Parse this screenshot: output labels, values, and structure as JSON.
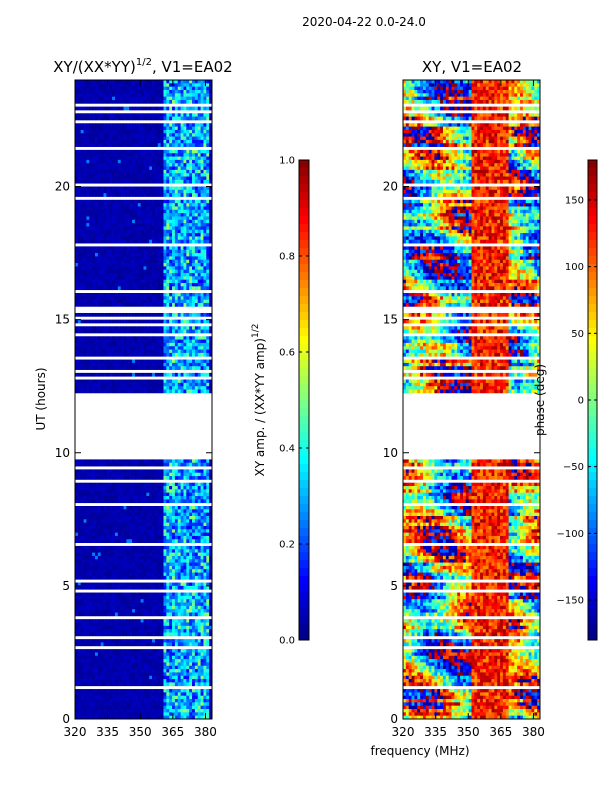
{
  "figure": {
    "suptitle": "2020-04-22 0.0-24.0"
  },
  "chart_data": [
    {
      "type": "heatmap",
      "title": "XY/(XX*YY)^1/2, V1=EA02",
      "title_main": "XY/(XX*YY)",
      "title_exp": "1/2",
      "title_rest": ", V1=EA02",
      "xlabel": "",
      "ylabel": "UT (hours)",
      "xlim": [
        320,
        383
      ],
      "ylim": [
        0,
        24
      ],
      "xticks": [
        320,
        335,
        350,
        365,
        380
      ],
      "yticks": [
        0,
        5,
        10,
        15,
        20
      ],
      "hot_band_mhz": [
        361,
        382
      ],
      "colorbar": {
        "label": "XY amp. / (XX*YY amp)^1/2",
        "label_main": "XY amp. / (XX*YY amp)",
        "label_exp": "1/2",
        "range": [
          0.0,
          1.0
        ],
        "ticks": [
          "0.0",
          "0.2",
          "0.4",
          "0.6",
          "0.8",
          "1.0"
        ],
        "tick_values": [
          0.0,
          0.2,
          0.4,
          0.6,
          0.8,
          1.0
        ]
      }
    },
    {
      "type": "heatmap",
      "title": "XY, V1=EA02",
      "xlabel": "frequency (MHz)",
      "ylabel": "",
      "xlim": [
        320,
        383
      ],
      "ylim": [
        0,
        24
      ],
      "xticks": [
        320,
        335,
        350,
        365,
        380
      ],
      "yticks": [
        0,
        5,
        10,
        15,
        20
      ],
      "colorbar": {
        "label": "phase (deg)",
        "range": [
          -180,
          180
        ],
        "ticks": [
          "−150",
          "−100",
          "−50",
          "0",
          "50",
          "100",
          "150"
        ],
        "tick_values": [
          -150,
          -100,
          -50,
          0,
          50,
          100,
          150
        ]
      }
    }
  ],
  "data_gaps_hours": [
    [
      9.75,
      12.25
    ],
    [
      15.2,
      15.55
    ],
    [
      14.75,
      14.9
    ],
    [
      14.35,
      14.45
    ],
    [
      13.55,
      13.65
    ],
    [
      13.05,
      13.15
    ],
    [
      12.75,
      12.82
    ],
    [
      15.05,
      15.1
    ],
    [
      9.35,
      9.45
    ],
    [
      8.85,
      8.95
    ],
    [
      8.05,
      8.1
    ],
    [
      7.45,
      7.55
    ],
    [
      7.0,
      7.06
    ],
    [
      6.55,
      6.62
    ],
    [
      5.15,
      5.22
    ],
    [
      4.75,
      4.82
    ],
    [
      4.35,
      4.42
    ],
    [
      3.75,
      3.85
    ],
    [
      3.45,
      3.52
    ],
    [
      3.05,
      3.12
    ],
    [
      2.65,
      2.72
    ],
    [
      1.45,
      1.55
    ],
    [
      1.15,
      1.25
    ],
    [
      0.35,
      0.42
    ],
    [
      23.05,
      23.15
    ],
    [
      22.75,
      22.82
    ],
    [
      22.35,
      22.45
    ],
    [
      21.95,
      22.02
    ],
    [
      21.35,
      21.45
    ],
    [
      20.85,
      20.92
    ],
    [
      20.45,
      20.52
    ],
    [
      20.0,
      20.08
    ],
    [
      19.55,
      19.62
    ],
    [
      18.85,
      18.92
    ],
    [
      18.35,
      18.42
    ],
    [
      17.75,
      17.82
    ],
    [
      17.35,
      17.42
    ],
    [
      16.85,
      16.92
    ],
    [
      16.45,
      16.52
    ],
    [
      16.0,
      16.08
    ],
    [
      23.45,
      23.55
    ]
  ],
  "colors": {
    "gap": "#ffffff",
    "axis": "#000000"
  }
}
